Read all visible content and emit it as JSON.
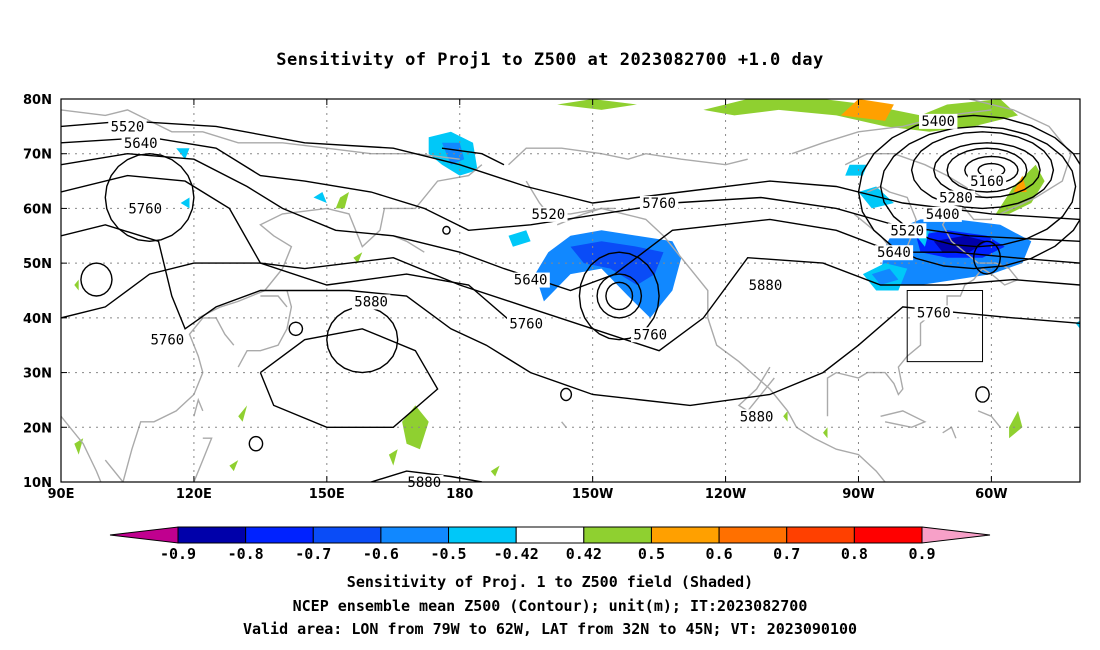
{
  "title": "Sensitivity of Proj1 to Z500 at 2023082700 +1.0 day",
  "axes": {
    "lon_ticks": [
      "90E",
      "120E",
      "150E",
      "180",
      "150W",
      "120W",
      "90W",
      "60W"
    ],
    "lat_ticks": [
      "80N",
      "70N",
      "60N",
      "50N",
      "40N",
      "30N",
      "20N",
      "10N"
    ]
  },
  "map": {
    "lon_range": [
      90,
      320
    ],
    "lat_range": [
      10,
      80
    ],
    "grid": "dotted",
    "coastline_color": "#aaaaaa",
    "contour_labels": [
      {
        "text": "5520",
        "lon": 105,
        "lat": 75
      },
      {
        "text": "5640",
        "lon": 108,
        "lat": 72
      },
      {
        "text": "5760",
        "lon": 109,
        "lat": 60
      },
      {
        "text": "5760",
        "lon": 114,
        "lat": 36
      },
      {
        "text": "5880",
        "lon": 160,
        "lat": 43
      },
      {
        "text": "5520",
        "lon": 200,
        "lat": 59
      },
      {
        "text": "5640",
        "lon": 196,
        "lat": 47
      },
      {
        "text": "5760",
        "lon": 195,
        "lat": 39
      },
      {
        "text": "5760",
        "lon": 225,
        "lat": 61
      },
      {
        "text": "5760",
        "lon": 223,
        "lat": 37
      },
      {
        "text": "5880",
        "lon": 249,
        "lat": 46
      },
      {
        "text": "5880",
        "lon": 247,
        "lat": 22
      },
      {
        "text": "5880",
        "lon": 172,
        "lat": 10
      },
      {
        "text": "5400",
        "lon": 288,
        "lat": 76
      },
      {
        "text": "5160",
        "lon": 299,
        "lat": 65
      },
      {
        "text": "5280",
        "lon": 292,
        "lat": 62
      },
      {
        "text": "5400",
        "lon": 289,
        "lat": 59
      },
      {
        "text": "5520",
        "lon": 281,
        "lat": 56
      },
      {
        "text": "5640",
        "lon": 278,
        "lat": 52
      },
      {
        "text": "5760",
        "lon": 287,
        "lat": 41
      }
    ],
    "valid_box": {
      "lon_w": 281,
      "lon_e": 298,
      "lat_s": 32,
      "lat_n": 45
    }
  },
  "colorbar": {
    "colors": [
      "#c0008f",
      "#0000aa",
      "#0022ff",
      "#0a4cf7",
      "#1188ff",
      "#00c8f8",
      "#ffffff",
      "#8fd030",
      "#ffa000",
      "#ff7000",
      "#ff4000",
      "#ff0000",
      "#f7a0c8"
    ],
    "labels": [
      "-0.9",
      "-0.8",
      "-0.7",
      "-0.6",
      "-0.5",
      "-0.42",
      "0.42",
      "0.5",
      "0.6",
      "0.7",
      "0.8",
      "0.9"
    ]
  },
  "captions": [
    "Sensitivity of Proj. 1 to Z500 field (Shaded)",
    "NCEP ensemble mean Z500 (Contour); unit(m); IT:2023082700",
    "Valid area: LON from 79W to 62W, LAT from 32N to 45N; VT: 2023090100"
  ]
}
